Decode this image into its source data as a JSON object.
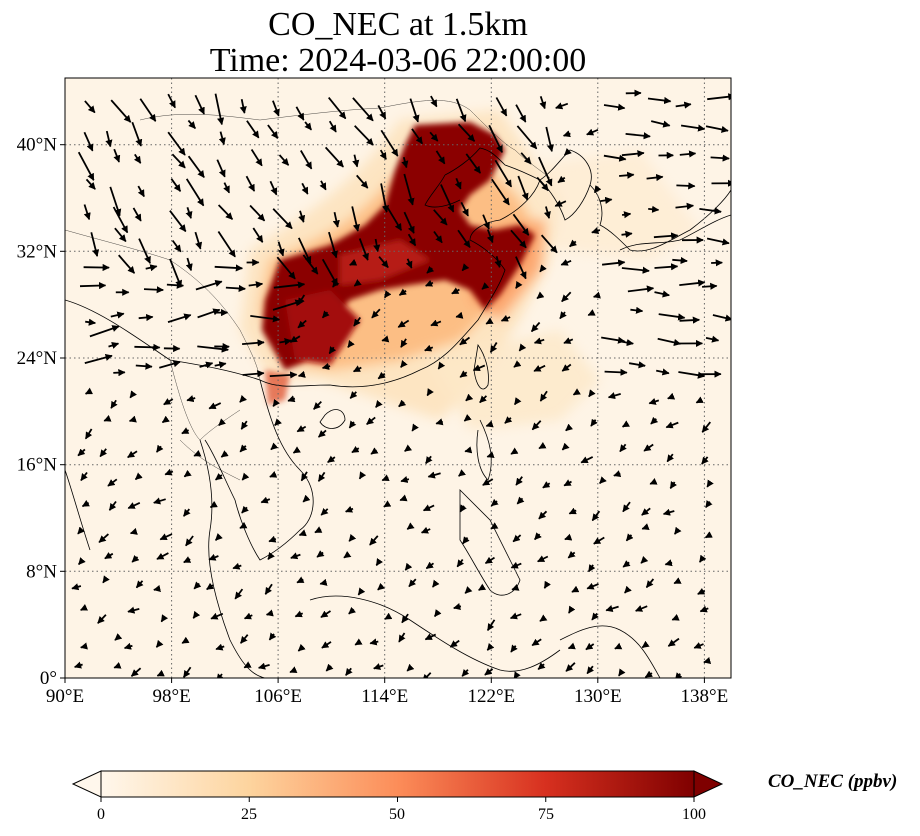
{
  "title": {
    "line1": "CO_NEC at 1.5km",
    "line2": "Time: 2024-03-06 22:00:00"
  },
  "map": {
    "projection": "PlateCarree",
    "lon_range": [
      90,
      140
    ],
    "lat_range": [
      0,
      45
    ],
    "lon_ticks": [
      "90°E",
      "98°E",
      "106°E",
      "114°E",
      "122°E",
      "130°E",
      "138°E"
    ],
    "lat_ticks": [
      "0°",
      "8°N",
      "16°N",
      "24°N",
      "32°N",
      "40°N"
    ],
    "gridlines": "dotted",
    "overlay": "wind vectors",
    "field_description": "CO plume over eastern China"
  },
  "colorbar": {
    "label": "CO_NEC (ppbv)",
    "colormap": "OrRd",
    "ticks": [
      "0",
      "25",
      "50",
      "75",
      "100"
    ],
    "range": [
      0,
      100
    ],
    "extend": "both",
    "colors": [
      "#fff7ec",
      "#fdd49e",
      "#fc8d59",
      "#d7301f",
      "#7f0000"
    ]
  }
}
